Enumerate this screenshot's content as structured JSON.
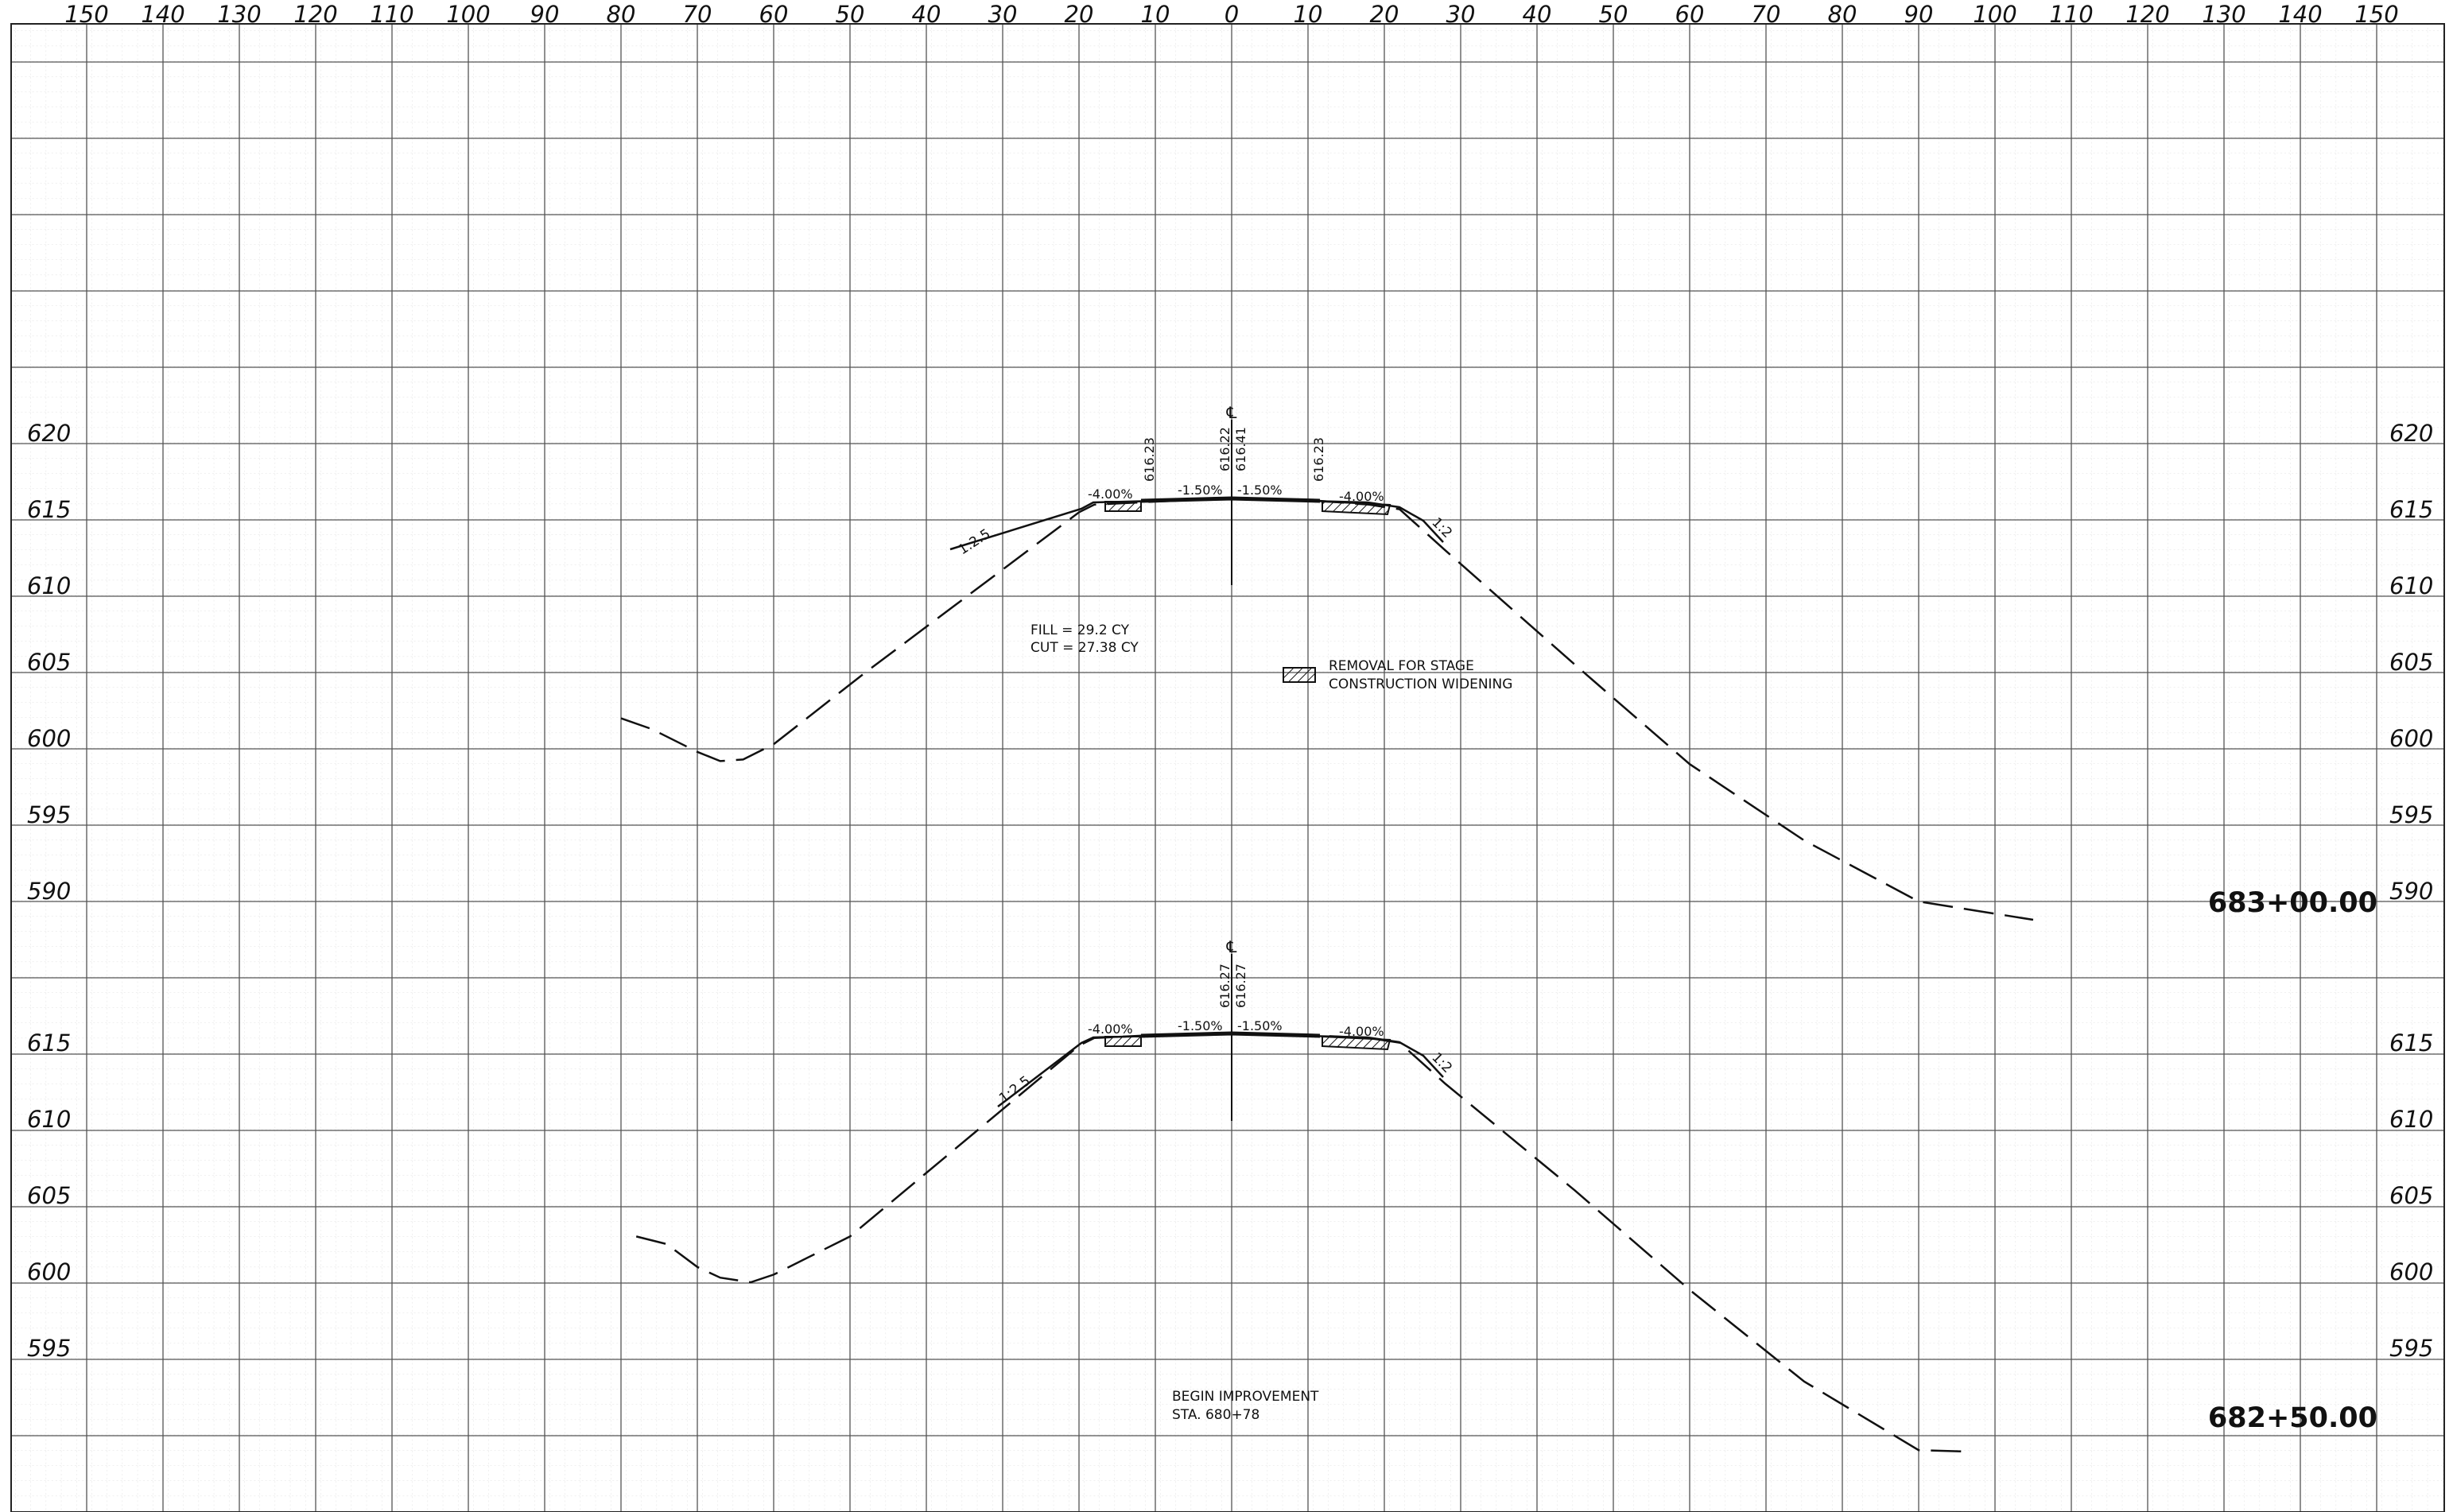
{
  "sheet": {
    "offset_ticks": [
      "150",
      "140",
      "130",
      "120",
      "110",
      "100",
      "90",
      "80",
      "70",
      "60",
      "50",
      "40",
      "30",
      "20",
      "10",
      "0",
      "10",
      "20",
      "30",
      "40",
      "50",
      "60",
      "70",
      "80",
      "90",
      "100",
      "110",
      "120",
      "130",
      "140",
      "150"
    ],
    "elevation_labels_upper": [
      "620",
      "615",
      "610",
      "605",
      "600",
      "595",
      "590"
    ],
    "elevation_labels_lower": [
      "615",
      "610",
      "605",
      "600",
      "595"
    ]
  },
  "upper_section": {
    "station": "683+00.00",
    "centerline_symbol": "℄",
    "elevations": {
      "left_edge": "616.23",
      "cl_a": "616.22",
      "cl_b": "616.41",
      "right_edge": "616.23"
    },
    "slopes": {
      "left_shoulder": "-4.00%",
      "left_lane": "-1.50%",
      "right_lane": "-1.50%",
      "right_shoulder": "-4.00%",
      "left_side": "1:2.5",
      "right_side": "1:2"
    },
    "fill_label": "FILL = 29.2 CY",
    "cut_label": "CUT = 27.38 CY",
    "legend": {
      "line1": "REMOVAL FOR STAGE",
      "line2": "CONSTRUCTION WIDENING"
    }
  },
  "lower_section": {
    "station": "682+50.00",
    "centerline_symbol": "℄",
    "elevations": {
      "cl_a": "616.27",
      "cl_b": "616.27"
    },
    "slopes": {
      "left_shoulder": "-4.00%",
      "left_lane": "-1.50%",
      "right_lane": "-1.50%",
      "right_shoulder": "-4.00%",
      "left_side": "1:2.5",
      "right_side": "1:2"
    },
    "note": {
      "line1": "BEGIN IMPROVEMENT",
      "line2": "STA. 680+78"
    }
  },
  "chart_data": [
    {
      "type": "line",
      "title": "683+00.00",
      "xlabel": "",
      "ylabel": "",
      "xlim": [
        -150,
        150
      ],
      "ylim": [
        585,
        630
      ],
      "grid": true,
      "series": [
        {
          "values_xy": [
            [
              -80,
              602.0
            ],
            [
              -76,
              601.3
            ],
            [
              -70,
              599.8
            ],
            [
              -67,
              599.2
            ],
            [
              -64,
              599.3
            ],
            [
              -60,
              600.3
            ],
            [
              -48,
              605.0
            ],
            [
              -20,
              615.5
            ],
            [
              -18,
              616.0
            ],
            [
              -10,
              616.2
            ],
            [
              0,
              616.4
            ],
            [
              10,
              616.3
            ],
            [
              18,
              616.0
            ],
            [
              22,
              615.7
            ],
            [
              28,
              613.0
            ],
            [
              45,
              605.5
            ],
            [
              60,
              599.0
            ],
            [
              75,
              594.0
            ],
            [
              90,
              590.0
            ],
            [
              100,
              589.2
            ],
            [
              105,
              588.8
            ]
          ]
        }
      ]
    },
    {
      "type": "line",
      "title": "682+50.00",
      "xlabel": "",
      "ylabel": "",
      "xlim": [
        -150,
        150
      ],
      "ylim": [
        590,
        620
      ],
      "grid": true,
      "series": [
        {
          "values_xy": [
            [
              -78,
              603.0
            ],
            [
              -74,
              602.5
            ],
            [
              -70,
              601.0
            ],
            [
              -67,
              600.3
            ],
            [
              -63,
              600.0
            ],
            [
              -60,
              600.5
            ],
            [
              -50,
              603.0
            ],
            [
              -20,
              615.5
            ],
            [
              -18,
              616.0
            ],
            [
              -10,
              616.2
            ],
            [
              0,
              616.3
            ],
            [
              10,
              616.2
            ],
            [
              18,
              616.0
            ],
            [
              22,
              615.7
            ],
            [
              28,
              613.0
            ],
            [
              45,
              606.0
            ],
            [
              60,
              599.5
            ],
            [
              75,
              593.5
            ],
            [
              90,
              589.0
            ],
            [
              97,
              588.9
            ]
          ]
        }
      ]
    }
  ]
}
